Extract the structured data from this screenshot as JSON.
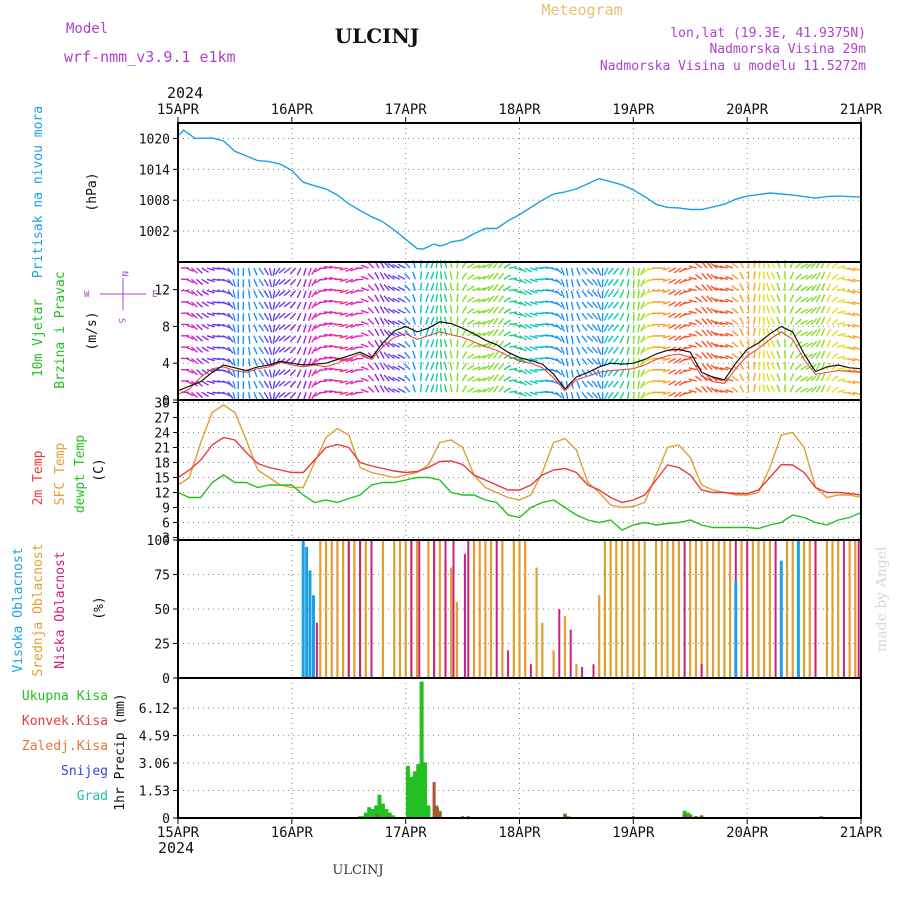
{
  "header": {
    "model_label": "Model",
    "model_name": "wrf-nmm_v3.9.1 e1km",
    "station": "ULCINJ",
    "product": "Meteogram",
    "lonlat": "lon,lat (19.3E, 41.9375N)",
    "altitude": "Nadmorska Visina 29m",
    "model_altitude": "Nadmorska Visina u modelu 11.5272m",
    "year_top": "2024",
    "year_bottom": "2024",
    "footer_station": "ULCINJ",
    "watermark": "made by Angel"
  },
  "colors": {
    "pressure": "#1ea0e6",
    "wind_label": "#22c022",
    "temp2m": "#e83c3c",
    "sfc": "#e0a030",
    "dewpt": "#22c022",
    "high_cloud": "#1ea0e6",
    "mid_cloud": "#e0a030",
    "low_cloud": "#cc2080",
    "purple": "#b040d0",
    "precip_total": "#22c022",
    "precip_conv": "#e83c3c",
    "precip_froz": "#e87830",
    "snow": "#4040e0",
    "hail": "#20c0b0"
  },
  "chart_data": [
    {
      "type": "line",
      "panel": "pressure",
      "ylabel_left": "Pritisak na nivou mora",
      "ylabel_unit": "(hPa)",
      "ylim": [
        996,
        1023
      ],
      "yticks": [
        "1020",
        "1014",
        "1008",
        "1002"
      ],
      "xlim": [
        0,
        6
      ],
      "x_tick_labels": [
        "15APR",
        "16APR",
        "17APR",
        "18APR",
        "19APR",
        "20APR",
        "21APR"
      ],
      "grid": true,
      "x": [
        0,
        0.05,
        0.15,
        0.3,
        0.4,
        0.5,
        0.7,
        0.8,
        0.9,
        1.0,
        1.1,
        1.2,
        1.3,
        1.4,
        1.5,
        1.6,
        1.7,
        1.8,
        1.9,
        2.0,
        2.1,
        2.15,
        2.2,
        2.25,
        2.3,
        2.35,
        2.4,
        2.5,
        2.6,
        2.7,
        2.8,
        2.9,
        3.0,
        3.1,
        3.2,
        3.3,
        3.4,
        3.5,
        3.6,
        3.7,
        3.8,
        3.9,
        4.0,
        4.1,
        4.2,
        4.3,
        4.4,
        4.5,
        4.6,
        4.7,
        4.8,
        4.9,
        5.0,
        5.1,
        5.2,
        5.3,
        5.4,
        5.5,
        5.6,
        5.7,
        5.8,
        5.9,
        6.0
      ],
      "values": [
        1020.5,
        1021.6,
        1020.0,
        1020.1,
        1019.5,
        1017.5,
        1015.7,
        1015.5,
        1015.0,
        1013.8,
        1011.5,
        1010.8,
        1010.2,
        1009.0,
        1007.3,
        1006.0,
        1004.8,
        1003.8,
        1002.2,
        1000.4,
        998.6,
        998.5,
        999.0,
        999.5,
        999.1,
        999.4,
        999.9,
        1000.3,
        1001.5,
        1002.5,
        1002.5,
        1004.0,
        1005.2,
        1006.6,
        1008.0,
        1009.2,
        1009.6,
        1010.2,
        1011.2,
        1012.2,
        1011.6,
        1011.0,
        1010.0,
        1008.7,
        1007.2,
        1006.6,
        1006.5,
        1006.2,
        1006.2,
        1006.7,
        1007.2,
        1008.2,
        1008.8,
        1009.1,
        1009.4,
        1009.2,
        1009.0,
        1008.7,
        1008.4,
        1008.7,
        1008.8,
        1008.7,
        1008.6
      ]
    },
    {
      "type": "line",
      "panel": "wind",
      "ylabel_left": "10m Vjetar Brzina i Pravac",
      "ylabel_unit": "(m/s)",
      "compass": {
        "n": "N",
        "e": "E",
        "w": "W",
        "s": "S"
      },
      "ylim": [
        0,
        15
      ],
      "yticks": [
        "12",
        "8",
        "4",
        "0"
      ],
      "xlim": [
        0,
        6
      ],
      "grid": true,
      "x": [
        0,
        0.1,
        0.2,
        0.3,
        0.4,
        0.5,
        0.6,
        0.7,
        0.8,
        0.9,
        1.0,
        1.1,
        1.2,
        1.3,
        1.4,
        1.5,
        1.6,
        1.7,
        1.8,
        1.9,
        2.0,
        2.1,
        2.2,
        2.3,
        2.4,
        2.5,
        2.6,
        2.7,
        2.8,
        2.9,
        3.0,
        3.1,
        3.2,
        3.3,
        3.4,
        3.5,
        3.6,
        3.7,
        3.8,
        3.9,
        4.0,
        4.1,
        4.2,
        4.3,
        4.4,
        4.5,
        4.6,
        4.7,
        4.8,
        4.9,
        5.0,
        5.1,
        5.2,
        5.3,
        5.4,
        5.5,
        5.6,
        5.7,
        5.8,
        5.9,
        6.0
      ],
      "values": [
        1.0,
        1.5,
        2.0,
        3.0,
        3.8,
        3.5,
        3.2,
        3.6,
        3.8,
        4.2,
        4.0,
        3.8,
        3.9,
        4.0,
        4.4,
        4.8,
        5.2,
        4.6,
        6.2,
        7.5,
        8.0,
        7.4,
        7.8,
        8.5,
        8.3,
        7.8,
        7.2,
        6.5,
        6.0,
        5.2,
        4.6,
        4.3,
        3.9,
        2.8,
        1.2,
        2.5,
        3.0,
        3.6,
        4.0,
        3.9,
        4.0,
        4.4,
        5.0,
        5.4,
        5.5,
        5.2,
        3.0,
        2.5,
        2.2,
        4.0,
        5.5,
        6.2,
        7.2,
        8.0,
        7.4,
        5.0,
        3.1,
        3.6,
        3.8,
        3.5,
        3.4
      ],
      "gust": [
        0.6,
        1.2,
        2.5,
        3.4,
        3.6,
        3.2,
        3.0,
        3.4,
        3.6,
        4.1,
        3.8,
        3.6,
        3.8,
        3.6,
        4.0,
        4.5,
        5.0,
        4.4,
        5.8,
        6.8,
        7.2,
        6.6,
        7.0,
        7.4,
        7.1,
        6.8,
        6.3,
        5.8,
        5.4,
        4.8,
        4.2,
        4.0,
        3.5,
        2.4,
        1.0,
        2.2,
        2.6,
        3.0,
        3.2,
        3.3,
        3.4,
        3.8,
        4.4,
        4.8,
        5.0,
        4.6,
        2.6,
        2.0,
        1.8,
        3.4,
        4.8,
        5.6,
        6.6,
        7.4,
        6.6,
        4.4,
        2.8,
        3.0,
        3.2,
        3.1,
        3.0
      ]
    },
    {
      "type": "line",
      "panel": "temperature",
      "ylabel_2m": "2m Temp",
      "ylabel_sfc": "SFC Temp",
      "ylabel_dew": "dewpt Temp",
      "ylabel_unit": "(C)",
      "ylim": [
        2.5,
        30.5
      ],
      "yticks": [
        "30",
        "27",
        "24",
        "21",
        "18",
        "15",
        "12",
        "9",
        "6",
        "3"
      ],
      "xlim": [
        0,
        6
      ],
      "grid": true,
      "x": [
        0,
        0.1,
        0.2,
        0.3,
        0.4,
        0.5,
        0.6,
        0.7,
        0.8,
        0.9,
        1.0,
        1.1,
        1.2,
        1.3,
        1.4,
        1.5,
        1.6,
        1.7,
        1.8,
        1.9,
        2.0,
        2.1,
        2.2,
        2.3,
        2.4,
        2.5,
        2.6,
        2.7,
        2.8,
        2.9,
        3.0,
        3.1,
        3.2,
        3.3,
        3.4,
        3.5,
        3.6,
        3.7,
        3.8,
        3.9,
        4.0,
        4.1,
        4.2,
        4.3,
        4.4,
        4.5,
        4.6,
        4.7,
        4.8,
        4.9,
        5.0,
        5.1,
        5.2,
        5.3,
        5.4,
        5.5,
        5.6,
        5.7,
        5.8,
        5.9,
        6.0
      ],
      "series": [
        {
          "key": "sfc",
          "values": [
            13.5,
            15.0,
            22.0,
            28.0,
            29.5,
            28.0,
            22.5,
            16.5,
            15.0,
            13.5,
            13.0,
            13.0,
            18.0,
            23.0,
            24.8,
            23.5,
            17.0,
            16.0,
            15.5,
            15.0,
            15.5,
            16.0,
            17.5,
            22.0,
            22.5,
            21.0,
            15.5,
            13.0,
            12.0,
            11.0,
            10.5,
            11.5,
            16.0,
            22.0,
            22.8,
            20.5,
            14.0,
            12.0,
            9.5,
            9.0,
            9.2,
            10.0,
            15.5,
            21.0,
            21.5,
            19.0,
            13.5,
            12.5,
            12.0,
            11.5,
            11.5,
            12.0,
            17.0,
            23.5,
            24.0,
            21.0,
            13.0,
            11.0,
            11.5,
            11.5,
            11.0
          ]
        },
        {
          "key": "temp2m",
          "values": [
            15.0,
            16.5,
            18.5,
            21.5,
            23.0,
            22.5,
            20.0,
            17.8,
            17.0,
            16.5,
            16.0,
            16.0,
            18.5,
            21.0,
            21.6,
            21.0,
            18.0,
            17.3,
            16.8,
            16.3,
            16.0,
            16.2,
            17.0,
            18.2,
            18.3,
            17.6,
            15.5,
            14.5,
            13.5,
            12.5,
            12.5,
            13.5,
            15.5,
            16.5,
            16.8,
            16.0,
            13.5,
            12.5,
            11.0,
            10.0,
            10.5,
            11.5,
            14.5,
            17.5,
            17.0,
            15.5,
            12.5,
            12.0,
            12.0,
            11.8,
            11.8,
            12.5,
            15.0,
            17.6,
            17.5,
            16.0,
            13.0,
            12.0,
            12.0,
            11.8,
            11.5
          ]
        },
        {
          "key": "dewpt",
          "values": [
            12.0,
            11.0,
            11.0,
            14.0,
            15.5,
            14.0,
            14.0,
            13.0,
            13.5,
            13.5,
            13.5,
            11.5,
            10.0,
            10.5,
            10.0,
            10.8,
            11.5,
            13.5,
            14.0,
            14.0,
            14.5,
            15.0,
            15.0,
            14.5,
            12.0,
            11.5,
            11.5,
            10.5,
            10.0,
            7.5,
            7.0,
            9.0,
            10.0,
            10.5,
            9.0,
            7.5,
            6.5,
            6.0,
            6.5,
            4.5,
            5.5,
            6.0,
            5.5,
            5.8,
            6.0,
            6.5,
            5.5,
            5.0,
            5.0,
            5.0,
            5.0,
            4.8,
            5.5,
            6.0,
            7.5,
            7.0,
            6.0,
            5.5,
            6.5,
            7.0,
            8.0
          ]
        }
      ]
    },
    {
      "type": "bar",
      "panel": "clouds",
      "ylabel_high": "Visoka Oblacnost",
      "ylabel_mid": "Srednja Oblacnost",
      "ylabel_low": "Niska Oblacnost",
      "ylabel_unit": "(%)",
      "ylim": [
        0,
        100
      ],
      "yticks": [
        "100",
        "75",
        "50",
        "25",
        "0"
      ],
      "xlim": [
        0,
        6
      ],
      "grid": true,
      "high": [
        [
          1.1,
          100
        ],
        [
          1.13,
          95
        ],
        [
          1.16,
          78
        ],
        [
          1.19,
          60
        ],
        [
          4.9,
          70
        ],
        [
          5.3,
          85
        ],
        [
          5.45,
          100
        ]
      ],
      "mid": [
        [
          1.25,
          100
        ],
        [
          1.3,
          100
        ],
        [
          1.35,
          100
        ],
        [
          1.4,
          100
        ],
        [
          1.45,
          100
        ],
        [
          1.5,
          100
        ],
        [
          1.55,
          100
        ],
        [
          1.6,
          100
        ],
        [
          1.65,
          100
        ],
        [
          1.8,
          100
        ],
        [
          1.9,
          100
        ],
        [
          1.95,
          100
        ],
        [
          2.0,
          100
        ],
        [
          2.05,
          100
        ],
        [
          2.1,
          100
        ],
        [
          2.2,
          100
        ],
        [
          2.25,
          100
        ],
        [
          2.3,
          100
        ],
        [
          2.35,
          85
        ],
        [
          2.4,
          80
        ],
        [
          2.45,
          55
        ],
        [
          2.6,
          100
        ],
        [
          2.65,
          100
        ],
        [
          2.7,
          100
        ],
        [
          2.75,
          100
        ],
        [
          2.85,
          100
        ],
        [
          2.95,
          100
        ],
        [
          3.0,
          100
        ],
        [
          3.05,
          100
        ],
        [
          3.15,
          80
        ],
        [
          3.2,
          40
        ],
        [
          3.3,
          20
        ],
        [
          3.4,
          45
        ],
        [
          3.5,
          10
        ],
        [
          3.7,
          60
        ],
        [
          3.75,
          100
        ],
        [
          3.8,
          100
        ],
        [
          3.85,
          100
        ],
        [
          3.9,
          100
        ],
        [
          3.95,
          100
        ],
        [
          4.0,
          100
        ],
        [
          4.05,
          100
        ],
        [
          4.1,
          100
        ],
        [
          4.2,
          100
        ],
        [
          4.25,
          100
        ],
        [
          4.3,
          100
        ],
        [
          4.35,
          100
        ],
        [
          4.4,
          100
        ],
        [
          4.5,
          100
        ],
        [
          4.55,
          100
        ],
        [
          4.6,
          100
        ],
        [
          4.65,
          100
        ],
        [
          4.7,
          100
        ],
        [
          4.75,
          100
        ],
        [
          4.8,
          100
        ],
        [
          4.85,
          100
        ],
        [
          4.95,
          100
        ],
        [
          5.05,
          100
        ],
        [
          5.1,
          100
        ],
        [
          5.15,
          100
        ],
        [
          5.2,
          100
        ],
        [
          5.35,
          100
        ],
        [
          5.4,
          100
        ],
        [
          5.5,
          100
        ],
        [
          5.55,
          100
        ],
        [
          5.6,
          100
        ],
        [
          5.7,
          100
        ],
        [
          5.75,
          100
        ],
        [
          5.8,
          100
        ],
        [
          5.9,
          100
        ],
        [
          5.95,
          100
        ]
      ],
      "low": [
        [
          1.22,
          40
        ],
        [
          1.5,
          100
        ],
        [
          1.6,
          100
        ],
        [
          1.7,
          100
        ],
        [
          2.05,
          100
        ],
        [
          2.12,
          100
        ],
        [
          2.25,
          100
        ],
        [
          2.35,
          100
        ],
        [
          2.42,
          100
        ],
        [
          2.52,
          90
        ],
        [
          2.55,
          100
        ],
        [
          2.8,
          100
        ],
        [
          2.9,
          20
        ],
        [
          3.1,
          10
        ],
        [
          3.35,
          50
        ],
        [
          3.45,
          35
        ],
        [
          3.55,
          8
        ],
        [
          3.65,
          10
        ],
        [
          4.45,
          100
        ],
        [
          4.6,
          10
        ],
        [
          4.9,
          100
        ],
        [
          5.0,
          100
        ],
        [
          5.25,
          100
        ],
        [
          5.45,
          100
        ],
        [
          5.6,
          100
        ],
        [
          5.85,
          100
        ],
        [
          5.98,
          100
        ]
      ]
    },
    {
      "type": "bar",
      "panel": "precip",
      "legend": [
        "Ukupna Kisa",
        "Konvek.Kisa",
        "Zaledj.Kisa",
        "Snijeg",
        "Grad"
      ],
      "ylabel_unit": "1hr Precip (mm)",
      "ylim": [
        0,
        7.8
      ],
      "yticks": [
        "6.12",
        "4.59",
        "3.06",
        "1.53",
        "0"
      ],
      "xlim": [
        0,
        6
      ],
      "x_tick_labels": [
        "15APR",
        "16APR",
        "17APR",
        "18APR",
        "19APR",
        "20APR",
        "21APR"
      ],
      "grid": true,
      "total": [
        [
          1.55,
          0.05
        ],
        [
          1.6,
          0.1
        ],
        [
          1.63,
          0.1
        ],
        [
          1.65,
          0.3
        ],
        [
          1.68,
          0.6
        ],
        [
          1.71,
          0.5
        ],
        [
          1.74,
          0.7
        ],
        [
          1.77,
          1.3
        ],
        [
          1.8,
          0.8
        ],
        [
          1.83,
          0.5
        ],
        [
          1.86,
          0.3
        ],
        [
          1.89,
          0.15
        ],
        [
          2.02,
          2.9
        ],
        [
          2.05,
          2.3
        ],
        [
          2.08,
          2.6
        ],
        [
          2.11,
          3.0
        ],
        [
          2.14,
          7.6
        ],
        [
          2.17,
          3.1
        ],
        [
          2.2,
          0.7
        ],
        [
          2.27,
          0.7
        ],
        [
          2.3,
          0.4
        ],
        [
          3.4,
          0.2
        ],
        [
          3.43,
          0.1
        ],
        [
          4.45,
          0.4
        ],
        [
          4.48,
          0.3
        ],
        [
          4.5,
          0.2
        ],
        [
          4.55,
          0.1
        ],
        [
          4.6,
          0.1
        ],
        [
          5.65,
          0.1
        ]
      ],
      "convective": [
        [
          1.75,
          0.2
        ],
        [
          1.85,
          0.1
        ],
        [
          2.25,
          2.0
        ],
        [
          2.28,
          0.6
        ],
        [
          2.3,
          0.3
        ],
        [
          2.5,
          0.1
        ],
        [
          2.55,
          0.1
        ],
        [
          3.4,
          0.25
        ],
        [
          4.45,
          0.2
        ],
        [
          4.5,
          0.15
        ],
        [
          4.55,
          0.1
        ],
        [
          4.6,
          0.15
        ],
        [
          4.0,
          0.1
        ]
      ]
    }
  ]
}
